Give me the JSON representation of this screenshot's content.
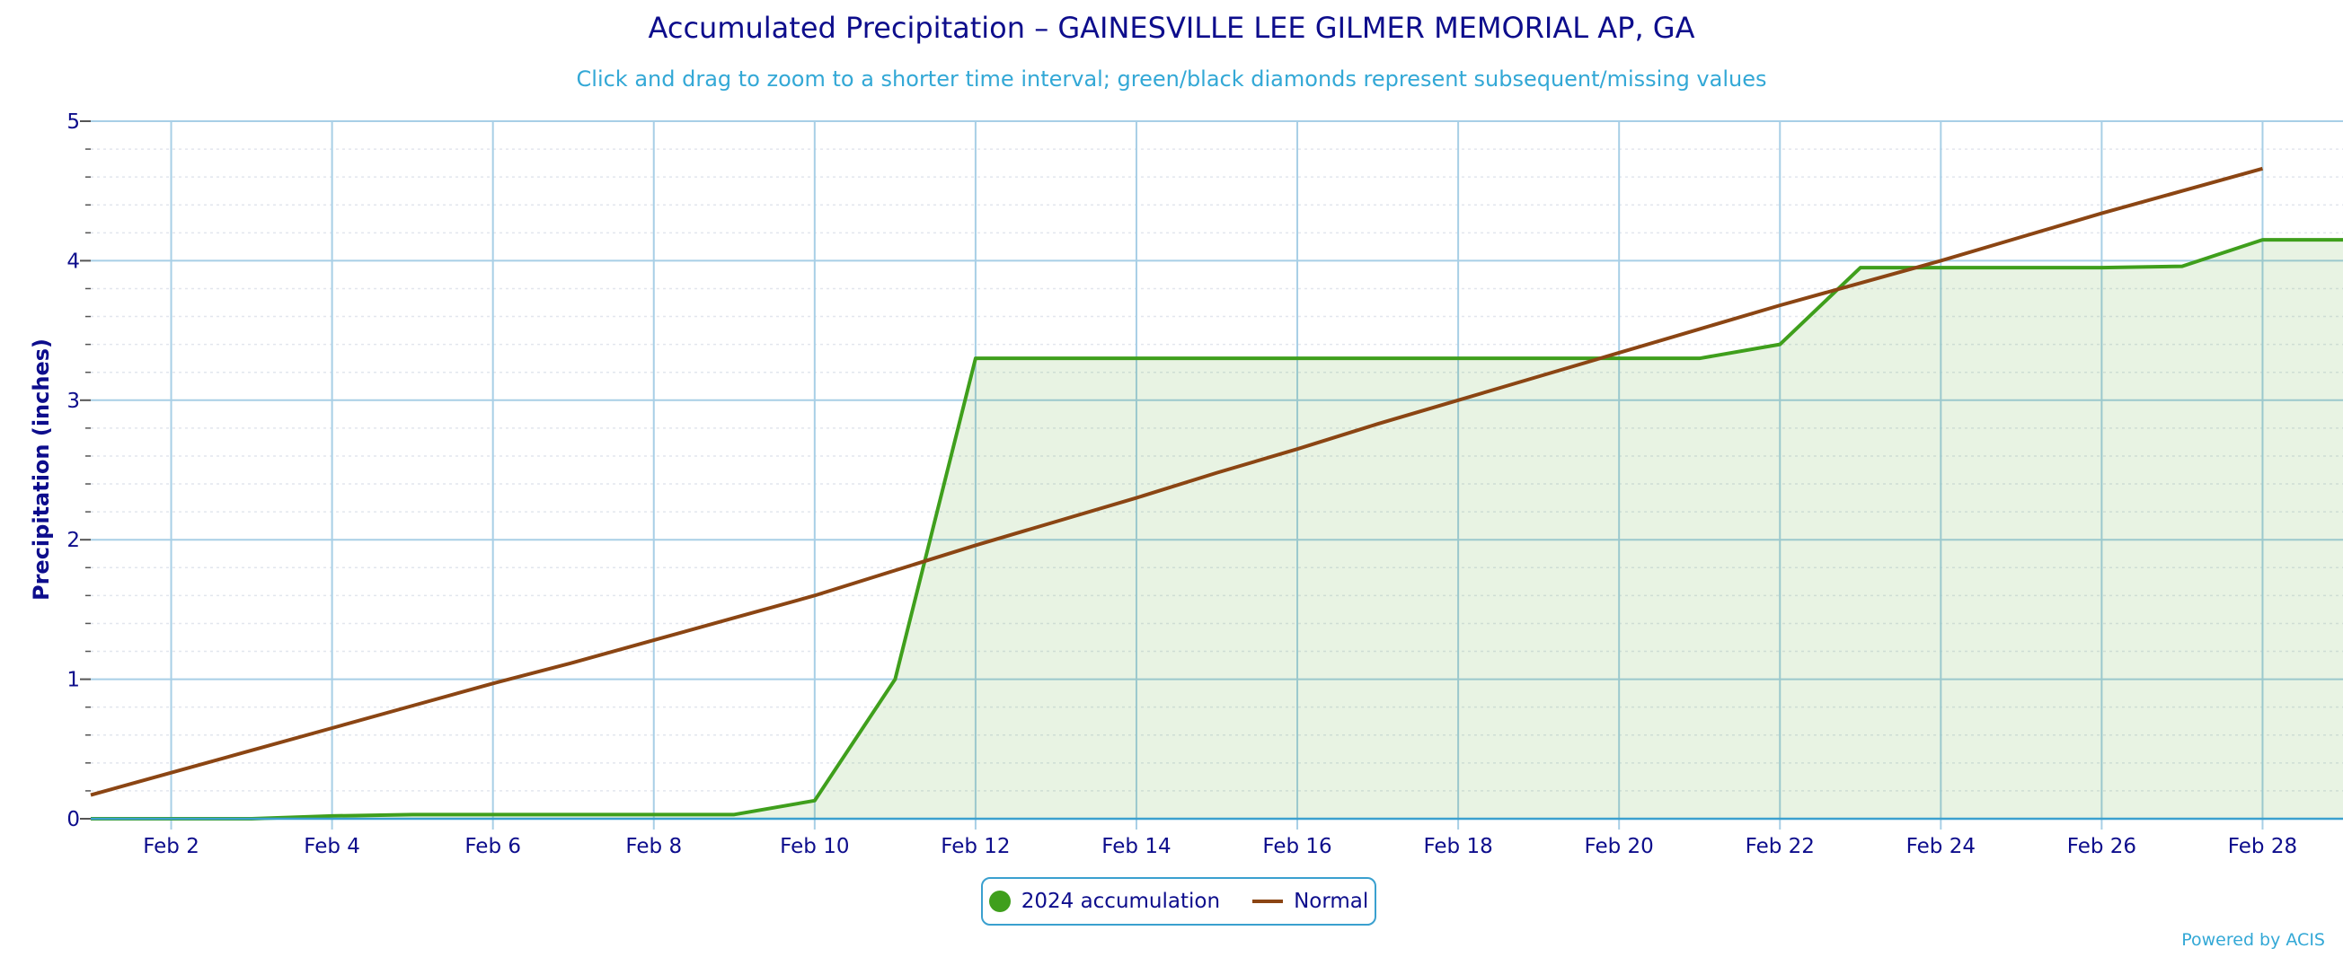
{
  "chart_data": {
    "type": "area",
    "title": "Accumulated Precipitation – GAINESVILLE LEE GILMER MEMORIAL AP, GA",
    "subtitle": "Click and drag to zoom to a shorter time interval; green/black diamonds represent subsequent/missing values",
    "ylabel": "Precipitation (inches)",
    "xlabel": "",
    "ylim": [
      0,
      5
    ],
    "yticks": [
      "0",
      "1",
      "2",
      "3",
      "4",
      "5"
    ],
    "xticks": [
      "Feb 2",
      "Feb 4",
      "Feb 6",
      "Feb 8",
      "Feb 10",
      "Feb 12",
      "Feb 14",
      "Feb 16",
      "Feb 18",
      "Feb 20",
      "Feb 22",
      "Feb 24",
      "Feb 26",
      "Feb 28"
    ],
    "xlim": [
      "Feb 1",
      "Feb 29"
    ],
    "grid": true,
    "legend_placement": "bottom-center",
    "x": [
      "Feb 1",
      "Feb 2",
      "Feb 3",
      "Feb 4",
      "Feb 5",
      "Feb 6",
      "Feb 7",
      "Feb 8",
      "Feb 9",
      "Feb 10",
      "Feb 11",
      "Feb 12",
      "Feb 13",
      "Feb 14",
      "Feb 15",
      "Feb 16",
      "Feb 17",
      "Feb 18",
      "Feb 19",
      "Feb 20",
      "Feb 21",
      "Feb 22",
      "Feb 23",
      "Feb 24",
      "Feb 25",
      "Feb 26",
      "Feb 27",
      "Feb 28",
      "Feb 29"
    ],
    "series": [
      {
        "name": "2024 accumulation",
        "type": "area",
        "color": "#3f9f1c",
        "values": [
          0.0,
          0.0,
          0.0,
          0.02,
          0.03,
          0.03,
          0.03,
          0.03,
          0.03,
          0.13,
          1.0,
          3.3,
          3.3,
          3.3,
          3.3,
          3.3,
          3.3,
          3.3,
          3.3,
          3.3,
          3.3,
          3.4,
          3.95,
          3.95,
          3.95,
          3.95,
          3.96,
          4.15,
          4.15
        ]
      },
      {
        "name": "Normal",
        "type": "line",
        "color": "#8b4513",
        "values": [
          0.17,
          0.33,
          0.49,
          0.65,
          0.81,
          0.97,
          1.12,
          1.28,
          1.44,
          1.6,
          1.78,
          1.96,
          2.13,
          2.3,
          2.48,
          2.65,
          2.83,
          3.0,
          3.17,
          3.34,
          3.51,
          3.68,
          3.84,
          4.0,
          4.17,
          4.34,
          4.5,
          4.66,
          null
        ]
      }
    ]
  },
  "legend": {
    "item1": "2024 accumulation",
    "item2": "Normal"
  },
  "credits": "Powered by ACIS"
}
